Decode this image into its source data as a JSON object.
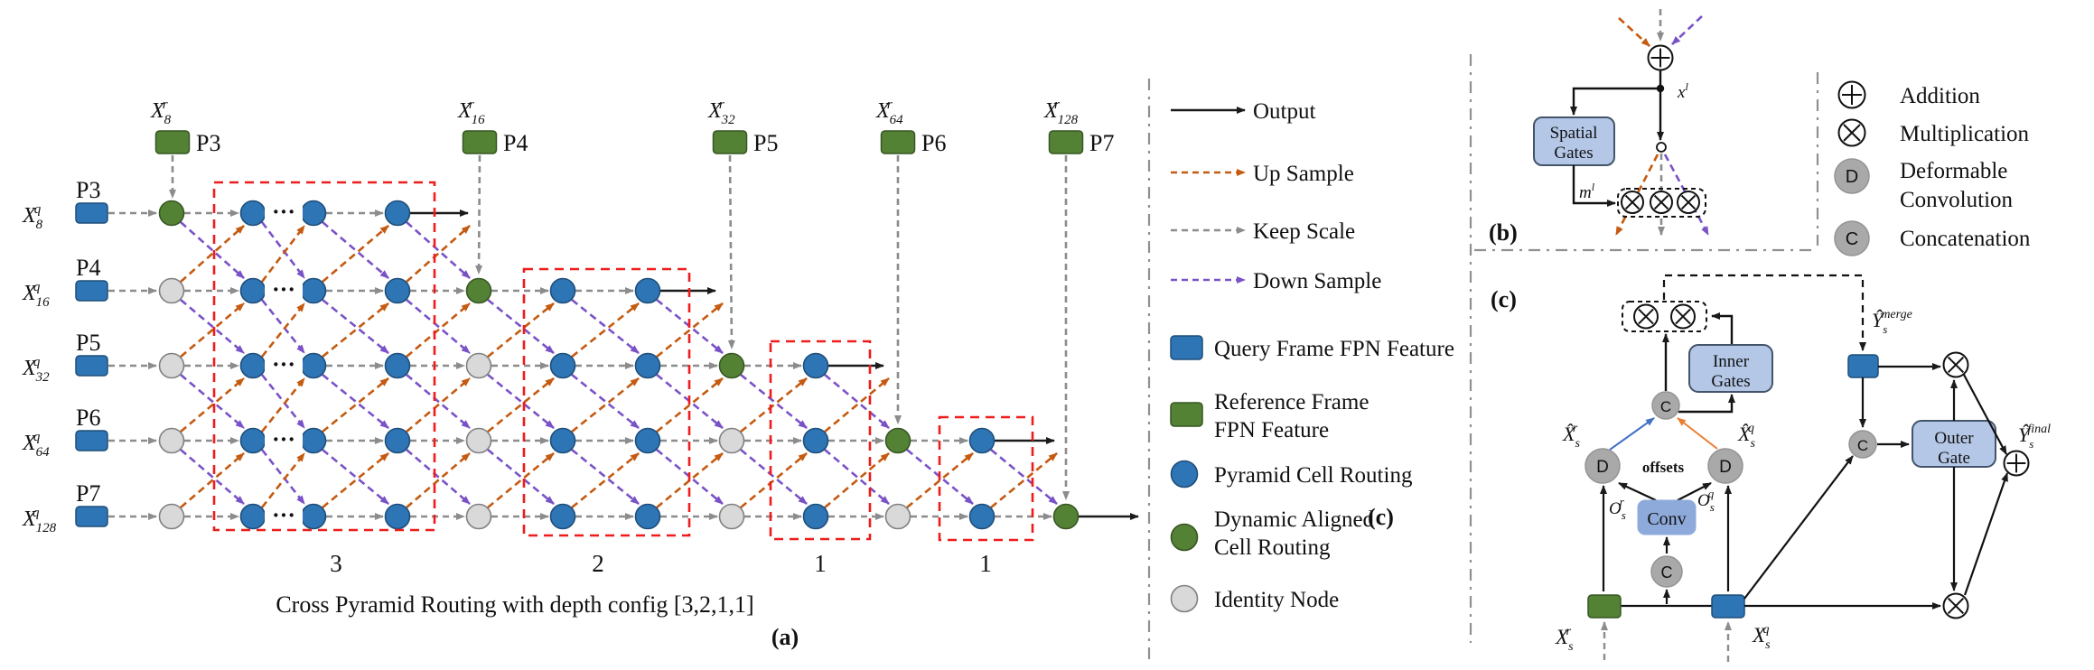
{
  "colors": {
    "blue": "#2e75b6",
    "blue_dark": "#1f4e79",
    "green": "#548235",
    "green_dark": "#375623",
    "identity": "#d9d9d9",
    "identity_border": "#808080",
    "op_gray": "#a9a9a9",
    "op_gray_border": "#949494",
    "box_blue": "#b4c7e7",
    "box_blue_deep": "#8eaadb",
    "box_border": "#44546a",
    "red": "#ee1c1c",
    "orange": "#c55a11",
    "purple": "#7a52c7",
    "gray": "#8c8c8c",
    "black": "#1a1a1a",
    "blue_arrow": "#4472c4",
    "orange_arrow": "#ed7d31"
  },
  "panel_a": {
    "label": "(a)",
    "caption": "Cross Pyramid Routing with depth config [3,2,1,1]",
    "stage_labels": [
      "3",
      "2",
      "1",
      "1"
    ],
    "dots": "···",
    "ref_inputs": [
      {
        "base": "X",
        "sup": "r",
        "sub": "8",
        "p": "P3"
      },
      {
        "base": "X",
        "sup": "r",
        "sub": "16",
        "p": "P4"
      },
      {
        "base": "X",
        "sup": "r",
        "sub": "32",
        "p": "P5"
      },
      {
        "base": "X",
        "sup": "r",
        "sub": "64",
        "p": "P6"
      },
      {
        "base": "X",
        "sup": "r",
        "sub": "128",
        "p": "P7"
      }
    ],
    "query_inputs": [
      {
        "base": "X",
        "sup": "q",
        "sub": "8",
        "p": "P3"
      },
      {
        "base": "X",
        "sup": "q",
        "sub": "16",
        "p": "P4"
      },
      {
        "base": "X",
        "sup": "q",
        "sub": "32",
        "p": "P5"
      },
      {
        "base": "X",
        "sup": "q",
        "sub": "64",
        "p": "P6"
      },
      {
        "base": "X",
        "sup": "q",
        "sub": "128",
        "p": "P7"
      }
    ]
  },
  "legend": {
    "arrows": [
      {
        "label": "Output",
        "style": "solid",
        "color": "#1a1a1a"
      },
      {
        "label": "Up Sample",
        "style": "dashed",
        "color": "#c55a11"
      },
      {
        "label": "Keep Scale",
        "style": "dashed",
        "color": "#8c8c8c"
      },
      {
        "label": "Down Sample",
        "style": "dashed",
        "color": "#7a52c7"
      }
    ],
    "markers": [
      {
        "shape": "square",
        "color": "#2e75b6",
        "label_lines": [
          "Query Frame FPN Feature"
        ]
      },
      {
        "shape": "square",
        "color": "#548235",
        "label_lines": [
          "Reference Frame",
          "FPN Feature"
        ]
      },
      {
        "shape": "circle",
        "color": "#2e75b6",
        "label_lines": [
          "Pyramid Cell Routing"
        ]
      },
      {
        "shape": "circle",
        "color": "#548235",
        "label_lines": [
          "Dynamic Aligned",
          "Cell Routing"
        ]
      },
      {
        "shape": "circle",
        "color": "#d9d9d9",
        "label_lines": [
          "Identity Node"
        ]
      }
    ],
    "stray_label": "(c)"
  },
  "panel_b": {
    "label": "(b)",
    "spatial_gates": [
      "Spatial",
      "Gates"
    ],
    "x_l": {
      "base": "x",
      "sup": "l"
    },
    "m_l": {
      "base": "m",
      "sup": "l"
    }
  },
  "symbols": [
    {
      "glyph": "⊕",
      "label_lines": [
        "Addition"
      ]
    },
    {
      "glyph": "⊗",
      "label_lines": [
        "Multiplication"
      ]
    },
    {
      "glyph": "D",
      "label_lines": [
        "Deformable",
        "Convolution"
      ]
    },
    {
      "glyph": "C",
      "label_lines": [
        "Concatenation"
      ]
    }
  ],
  "panel_c": {
    "label": "(c)",
    "inner_gates": [
      "Inner",
      "Gates"
    ],
    "outer_gate": [
      "Outer",
      "Gate"
    ],
    "conv": "Conv",
    "offsets": "offsets",
    "d_letter": "D",
    "c_letter": "C",
    "x_hat_r": {
      "base": "X̂",
      "sub": "s",
      "sup": "r"
    },
    "x_hat_q": {
      "base": "X̂",
      "sub": "s",
      "sup": "q"
    },
    "o_r": {
      "base": "O",
      "sub": "s",
      "sup": "r"
    },
    "o_q": {
      "base": "O",
      "sub": "s",
      "sup": "q"
    },
    "x_r": {
      "base": "X",
      "sub": "s",
      "sup": "r"
    },
    "x_q": {
      "base": "X",
      "sub": "s",
      "sup": "q"
    },
    "y_merge": {
      "base": "Ŷ",
      "sub": "s",
      "sup": "merge"
    },
    "y_final": {
      "base": "Ŷ",
      "sub": "s",
      "sup": "final"
    }
  }
}
